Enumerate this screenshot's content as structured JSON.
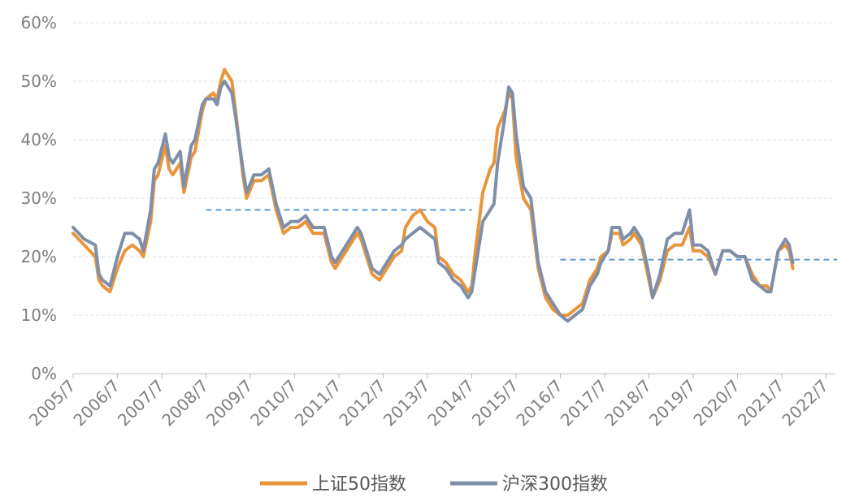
{
  "chart_data": {
    "type": "line",
    "title": "",
    "xlabel": "",
    "ylabel": "",
    "ylim": [
      0,
      60
    ],
    "xlim": [
      "2005/7",
      "2022/10"
    ],
    "y_ticks": [
      "0%",
      "10%",
      "20%",
      "30%",
      "40%",
      "50%",
      "60%"
    ],
    "y_tick_values": [
      0,
      10,
      20,
      30,
      40,
      50,
      60
    ],
    "x_ticks": [
      "2005/7",
      "2006/7",
      "2007/7",
      "2008/7",
      "2009/7",
      "2010/7",
      "2011/7",
      "2012/7",
      "2013/7",
      "2014/7",
      "2015/7",
      "2016/7",
      "2017/7",
      "2018/7",
      "2019/7",
      "2020/7",
      "2021/7",
      "2022/7"
    ],
    "grid": true,
    "legend_position": "bottom",
    "series": [
      {
        "name": "上证50指数",
        "color": "#e8953b",
        "points": [
          [
            "2005/7",
            24
          ],
          [
            "2005/10",
            22
          ],
          [
            "2006/1",
            20
          ],
          [
            "2006/2",
            16
          ],
          [
            "2006/3",
            15
          ],
          [
            "2006/5",
            14
          ],
          [
            "2006/7",
            18
          ],
          [
            "2006/9",
            21
          ],
          [
            "2006/11",
            22
          ],
          [
            "2007/1",
            21
          ],
          [
            "2007/2",
            20
          ],
          [
            "2007/4",
            26
          ],
          [
            "2007/5",
            33
          ],
          [
            "2007/6",
            34
          ],
          [
            "2007/8",
            39
          ],
          [
            "2007/9",
            35
          ],
          [
            "2007/10",
            34
          ],
          [
            "2007/12",
            36
          ],
          [
            "2008/1",
            31
          ],
          [
            "2008/3",
            37
          ],
          [
            "2008/4",
            38
          ],
          [
            "2008/6",
            45
          ],
          [
            "2008/7",
            47
          ],
          [
            "2008/9",
            48
          ],
          [
            "2008/10",
            47
          ],
          [
            "2008/11",
            50
          ],
          [
            "2008/12",
            52
          ],
          [
            "2009/2",
            50
          ],
          [
            "2009/3",
            45
          ],
          [
            "2009/5",
            34
          ],
          [
            "2009/6",
            30
          ],
          [
            "2009/8",
            33
          ],
          [
            "2009/10",
            33
          ],
          [
            "2009/12",
            34
          ],
          [
            "2010/2",
            28
          ],
          [
            "2010/4",
            24
          ],
          [
            "2010/6",
            25
          ],
          [
            "2010/8",
            25
          ],
          [
            "2010/10",
            26
          ],
          [
            "2010/12",
            24
          ],
          [
            "2011/3",
            24
          ],
          [
            "2011/5",
            19
          ],
          [
            "2011/6",
            18
          ],
          [
            "2011/8",
            20
          ],
          [
            "2011/10",
            22
          ],
          [
            "2011/12",
            24
          ],
          [
            "2012/1",
            23
          ],
          [
            "2012/3",
            19
          ],
          [
            "2012/4",
            17
          ],
          [
            "2012/6",
            16
          ],
          [
            "2012/8",
            18
          ],
          [
            "2012/10",
            20
          ],
          [
            "2012/12",
            21
          ],
          [
            "2013/1",
            25
          ],
          [
            "2013/3",
            27
          ],
          [
            "2013/5",
            28
          ],
          [
            "2013/7",
            26
          ],
          [
            "2013/9",
            25
          ],
          [
            "2013/10",
            20
          ],
          [
            "2013/12",
            19
          ],
          [
            "2014/2",
            17
          ],
          [
            "2014/4",
            16
          ],
          [
            "2014/6",
            14
          ],
          [
            "2014/7",
            15
          ],
          [
            "2014/8",
            21
          ],
          [
            "2014/10",
            31
          ],
          [
            "2014/12",
            35
          ],
          [
            "2015/1",
            36
          ],
          [
            "2015/2",
            42
          ],
          [
            "2015/4",
            45
          ],
          [
            "2015/5",
            48
          ],
          [
            "2015/6",
            47
          ],
          [
            "2015/7",
            37
          ],
          [
            "2015/9",
            30
          ],
          [
            "2015/11",
            28
          ],
          [
            "2016/1",
            18
          ],
          [
            "2016/3",
            13
          ],
          [
            "2016/5",
            11
          ],
          [
            "2016/7",
            10
          ],
          [
            "2016/9",
            10
          ],
          [
            "2016/11",
            11
          ],
          [
            "2017/1",
            12
          ],
          [
            "2017/3",
            16
          ],
          [
            "2017/5",
            18
          ],
          [
            "2017/6",
            20
          ],
          [
            "2017/8",
            21
          ],
          [
            "2017/9",
            24
          ],
          [
            "2017/11",
            24
          ],
          [
            "2017/12",
            22
          ],
          [
            "2018/2",
            23
          ],
          [
            "2018/3",
            24
          ],
          [
            "2018/5",
            22
          ],
          [
            "2018/7",
            16
          ],
          [
            "2018/8",
            13
          ],
          [
            "2018/10",
            16
          ],
          [
            "2018/12",
            21
          ],
          [
            "2019/2",
            22
          ],
          [
            "2019/4",
            22
          ],
          [
            "2019/6",
            25
          ],
          [
            "2019/7",
            21
          ],
          [
            "2019/9",
            21
          ],
          [
            "2019/11",
            20
          ],
          [
            "2020/1",
            17
          ],
          [
            "2020/3",
            21
          ],
          [
            "2020/5",
            21
          ],
          [
            "2020/7",
            20
          ],
          [
            "2020/9",
            20
          ],
          [
            "2020/11",
            17
          ],
          [
            "2021/1",
            15
          ],
          [
            "2021/3",
            15
          ],
          [
            "2021/4",
            14
          ],
          [
            "2021/6",
            21
          ],
          [
            "2021/8",
            22
          ],
          [
            "2021/9",
            21
          ],
          [
            "2021/10",
            18
          ]
        ]
      },
      {
        "name": "沪深300指数",
        "color": "#7f8fa9",
        "points": [
          [
            "2005/7",
            25
          ],
          [
            "2005/10",
            23
          ],
          [
            "2006/1",
            22
          ],
          [
            "2006/2",
            17
          ],
          [
            "2006/3",
            16
          ],
          [
            "2006/5",
            15
          ],
          [
            "2006/7",
            20
          ],
          [
            "2006/9",
            24
          ],
          [
            "2006/11",
            24
          ],
          [
            "2007/1",
            23
          ],
          [
            "2007/2",
            21
          ],
          [
            "2007/4",
            28
          ],
          [
            "2007/5",
            35
          ],
          [
            "2007/6",
            36
          ],
          [
            "2007/8",
            41
          ],
          [
            "2007/9",
            37
          ],
          [
            "2007/10",
            36
          ],
          [
            "2007/12",
            38
          ],
          [
            "2008/1",
            32
          ],
          [
            "2008/3",
            39
          ],
          [
            "2008/4",
            40
          ],
          [
            "2008/6",
            46
          ],
          [
            "2008/7",
            47
          ],
          [
            "2008/9",
            47
          ],
          [
            "2008/10",
            46
          ],
          [
            "2008/11",
            49
          ],
          [
            "2008/12",
            50
          ],
          [
            "2009/2",
            48
          ],
          [
            "2009/3",
            44
          ],
          [
            "2009/5",
            35
          ],
          [
            "2009/6",
            31
          ],
          [
            "2009/8",
            34
          ],
          [
            "2009/10",
            34
          ],
          [
            "2009/12",
            35
          ],
          [
            "2010/2",
            29
          ],
          [
            "2010/4",
            25
          ],
          [
            "2010/6",
            26
          ],
          [
            "2010/8",
            26
          ],
          [
            "2010/10",
            27
          ],
          [
            "2010/12",
            25
          ],
          [
            "2011/3",
            25
          ],
          [
            "2011/5",
            20
          ],
          [
            "2011/6",
            19
          ],
          [
            "2011/8",
            21
          ],
          [
            "2011/10",
            23
          ],
          [
            "2011/12",
            25
          ],
          [
            "2012/1",
            24
          ],
          [
            "2012/3",
            20
          ],
          [
            "2012/4",
            18
          ],
          [
            "2012/6",
            17
          ],
          [
            "2012/8",
            19
          ],
          [
            "2012/10",
            21
          ],
          [
            "2012/12",
            22
          ],
          [
            "2013/1",
            23
          ],
          [
            "2013/3",
            24
          ],
          [
            "2013/5",
            25
          ],
          [
            "2013/7",
            24
          ],
          [
            "2013/9",
            23
          ],
          [
            "2013/10",
            19
          ],
          [
            "2013/12",
            18
          ],
          [
            "2014/2",
            16
          ],
          [
            "2014/4",
            15
          ],
          [
            "2014/6",
            13
          ],
          [
            "2014/7",
            14
          ],
          [
            "2014/8",
            18
          ],
          [
            "2014/10",
            26
          ],
          [
            "2014/12",
            28
          ],
          [
            "2015/1",
            29
          ],
          [
            "2015/2",
            36
          ],
          [
            "2015/4",
            44
          ],
          [
            "2015/5",
            49
          ],
          [
            "2015/6",
            48
          ],
          [
            "2015/7",
            41
          ],
          [
            "2015/9",
            32
          ],
          [
            "2015/11",
            30
          ],
          [
            "2016/1",
            19
          ],
          [
            "2016/3",
            14
          ],
          [
            "2016/5",
            12
          ],
          [
            "2016/7",
            10
          ],
          [
            "2016/9",
            9
          ],
          [
            "2016/11",
            10
          ],
          [
            "2017/1",
            11
          ],
          [
            "2017/3",
            15
          ],
          [
            "2017/5",
            17
          ],
          [
            "2017/6",
            19
          ],
          [
            "2017/8",
            21
          ],
          [
            "2017/9",
            25
          ],
          [
            "2017/11",
            25
          ],
          [
            "2017/12",
            23
          ],
          [
            "2018/2",
            24
          ],
          [
            "2018/3",
            25
          ],
          [
            "2018/5",
            23
          ],
          [
            "2018/7",
            17
          ],
          [
            "2018/8",
            13
          ],
          [
            "2018/10",
            17
          ],
          [
            "2018/12",
            23
          ],
          [
            "2019/2",
            24
          ],
          [
            "2019/4",
            24
          ],
          [
            "2019/6",
            28
          ],
          [
            "2019/7",
            22
          ],
          [
            "2019/9",
            22
          ],
          [
            "2019/11",
            21
          ],
          [
            "2020/1",
            17
          ],
          [
            "2020/3",
            21
          ],
          [
            "2020/5",
            21
          ],
          [
            "2020/7",
            20
          ],
          [
            "2020/9",
            20
          ],
          [
            "2020/11",
            16
          ],
          [
            "2021/1",
            15
          ],
          [
            "2021/3",
            14
          ],
          [
            "2021/4",
            14
          ],
          [
            "2021/6",
            21
          ],
          [
            "2021/8",
            23
          ],
          [
            "2021/9",
            22
          ],
          [
            "2021/10",
            19
          ]
        ]
      }
    ],
    "reference_lines": [
      {
        "color": "#5b9bd5",
        "style": "dashed",
        "y": 28,
        "x_start": "2008/7",
        "x_end": "2014/7"
      },
      {
        "color": "#5b9bd5",
        "style": "dashed",
        "y": 19.5,
        "x_start": "2016/7",
        "x_end": "2022/10"
      }
    ]
  }
}
